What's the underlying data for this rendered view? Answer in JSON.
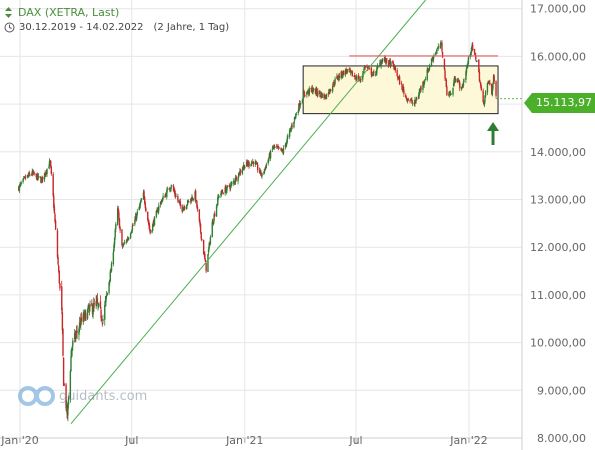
{
  "header": {
    "title": "DAX (XETRA, Last)",
    "subtitle": "30.12.2019 - 14.02.2022",
    "range_note": "(2 Jahre, 1 Tag)"
  },
  "watermark": {
    "text": "guidants.com"
  },
  "price_badge": {
    "value": "15.113,97"
  },
  "colors": {
    "up_candle": "#2e7d32",
    "down_candle": "#c62828",
    "trendline": "#4caf50",
    "box_fill": "#fdf8d8",
    "resistance": "#e06060",
    "badge": "#4caf2a",
    "arrow": "#2e7d32",
    "grid": "#e6e6e6"
  },
  "chart_data": {
    "type": "candlestick",
    "title": "DAX (XETRA, Last)",
    "period": "30.12.2019 - 14.02.2022",
    "interval": "1 Tag",
    "ylim": [
      8000,
      17400
    ],
    "y_ticks": [
      "8.000,00",
      "9.000,00",
      "10.000,00",
      "11.000,00",
      "12.000,00",
      "13.000,00",
      "14.000,00",
      "15.000,00",
      "16.000,00",
      "17.000,00"
    ],
    "x_ticks": [
      "Jan '20",
      "Jul",
      "Jan '21",
      "Jul",
      "Jan '22"
    ],
    "price_path": [
      [
        "2019-12-30",
        13250
      ],
      [
        "2020-01-10",
        13450
      ],
      [
        "2020-01-20",
        13550
      ],
      [
        "2020-02-05",
        13400
      ],
      [
        "2020-02-19",
        13780
      ],
      [
        "2020-02-24",
        13050
      ],
      [
        "2020-03-02",
        11800
      ],
      [
        "2020-03-09",
        10600
      ],
      [
        "2020-03-12",
        9200
      ],
      [
        "2020-03-18",
        8450
      ],
      [
        "2020-03-25",
        9900
      ],
      [
        "2020-04-08",
        10400
      ],
      [
        "2020-04-20",
        10650
      ],
      [
        "2020-05-05",
        10800
      ],
      [
        "2020-05-15",
        10500
      ],
      [
        "2020-05-29",
        11600
      ],
      [
        "2020-06-08",
        12800
      ],
      [
        "2020-06-15",
        12000
      ],
      [
        "2020-06-25",
        12200
      ],
      [
        "2020-07-07",
        12600
      ],
      [
        "2020-07-20",
        13100
      ],
      [
        "2020-07-31",
        12300
      ],
      [
        "2020-08-15",
        12900
      ],
      [
        "2020-09-03",
        13300
      ],
      [
        "2020-09-20",
        12800
      ],
      [
        "2020-10-12",
        13100
      ],
      [
        "2020-10-30",
        11550
      ],
      [
        "2020-11-09",
        12500
      ],
      [
        "2020-11-20",
        13100
      ],
      [
        "2020-12-10",
        13300
      ],
      [
        "2020-12-30",
        13700
      ],
      [
        "2021-01-15",
        13800
      ],
      [
        "2021-01-29",
        13500
      ],
      [
        "2021-02-16",
        14100
      ],
      [
        "2021-03-04",
        14000
      ],
      [
        "2021-03-20",
        14600
      ],
      [
        "2021-04-06",
        15200
      ],
      [
        "2021-04-20",
        15300
      ],
      [
        "2021-05-12",
        15150
      ],
      [
        "2021-05-31",
        15550
      ],
      [
        "2021-06-15",
        15700
      ],
      [
        "2021-07-08",
        15500
      ],
      [
        "2021-07-16",
        15800
      ],
      [
        "2021-07-30",
        15600
      ],
      [
        "2021-08-13",
        15950
      ],
      [
        "2021-08-31",
        15800
      ],
      [
        "2021-09-20",
        15150
      ],
      [
        "2021-10-04",
        15000
      ],
      [
        "2021-10-20",
        15500
      ],
      [
        "2021-11-05",
        16050
      ],
      [
        "2021-11-17",
        16250
      ],
      [
        "2021-11-26",
        15250
      ],
      [
        "2021-12-03",
        15200
      ],
      [
        "2021-12-10",
        15600
      ],
      [
        "2021-12-20",
        15300
      ],
      [
        "2022-01-05",
        16200
      ],
      [
        "2022-01-14",
        15900
      ],
      [
        "2022-01-24",
        15000
      ],
      [
        "2022-02-02",
        15500
      ],
      [
        "2022-02-07",
        15200
      ],
      [
        "2022-02-10",
        15600
      ],
      [
        "2022-02-14",
        15114
      ]
    ],
    "last_price": 15113.97,
    "annotations": {
      "range_box": {
        "from": "2021-04-06",
        "to": "2022-02-14",
        "low": 14800,
        "high": 15800
      },
      "resistance_line": {
        "from": "2021-06-20",
        "to": "2022-02-14",
        "level": 16010
      },
      "trendline": {
        "p1": [
          "2020-03-24",
          8300
        ],
        "p2": [
          "2021-07-05",
          15500
        ]
      },
      "arrow": {
        "date": "2022-02-14",
        "direction": "up"
      }
    }
  }
}
